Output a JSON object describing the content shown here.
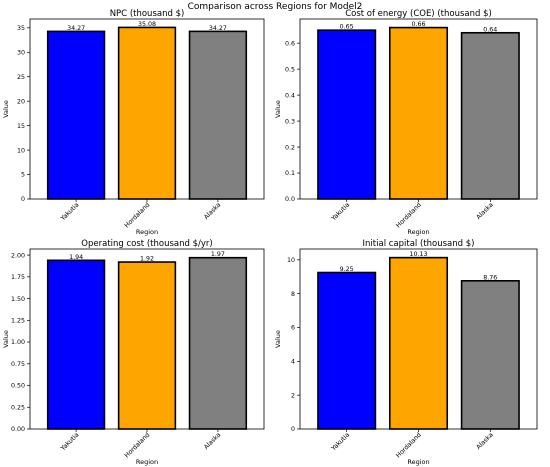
{
  "figure": {
    "title": "Comparison across Regions for Model2"
  },
  "chart_data": [
    {
      "type": "bar",
      "title": "NPC (thousand $)",
      "xlabel": "Region",
      "ylabel": "Value",
      "categories": [
        "Yakutia",
        "Hordaland",
        "Alaska"
      ],
      "values": [
        34.27,
        35.08,
        34.27
      ],
      "data_labels": [
        "34.27",
        "35.08",
        "34.27"
      ],
      "colors": [
        "#0000ff",
        "#ffa500",
        "#808080"
      ],
      "ylim": [
        0,
        36.8
      ],
      "yticks": [
        0,
        5,
        10,
        15,
        20,
        25,
        30,
        35
      ],
      "ytick_labels": [
        "0",
        "5",
        "10",
        "15",
        "20",
        "25",
        "30",
        "35"
      ],
      "grid": false
    },
    {
      "type": "bar",
      "title": "Cost of energy (COE) (thousand $)",
      "xlabel": "Region",
      "ylabel": "Value",
      "categories": [
        "Yakutia",
        "Hordaland",
        "Alaska"
      ],
      "values": [
        0.65,
        0.66,
        0.64
      ],
      "data_labels": [
        "0.65",
        "0.66",
        "0.64"
      ],
      "colors": [
        "#0000ff",
        "#ffa500",
        "#808080"
      ],
      "ylim": [
        0,
        0.693
      ],
      "yticks": [
        0,
        0.1,
        0.2,
        0.3,
        0.4,
        0.5,
        0.6
      ],
      "ytick_labels": [
        "0.0",
        "0.1",
        "0.2",
        "0.3",
        "0.4",
        "0.5",
        "0.6"
      ],
      "grid": false
    },
    {
      "type": "bar",
      "title": "Operating cost (thousand $/yr)",
      "xlabel": "Region",
      "ylabel": "Value",
      "categories": [
        "Yakutia",
        "Hordaland",
        "Alaska"
      ],
      "values": [
        1.94,
        1.92,
        1.97
      ],
      "data_labels": [
        "1.94",
        "1.92",
        "1.97"
      ],
      "colors": [
        "#0000ff",
        "#ffa500",
        "#808080"
      ],
      "ylim": [
        0,
        2.07
      ],
      "yticks": [
        0,
        0.25,
        0.5,
        0.75,
        1.0,
        1.25,
        1.5,
        1.75,
        2.0
      ],
      "ytick_labels": [
        "0.00",
        "0.25",
        "0.50",
        "0.75",
        "1.00",
        "1.25",
        "1.50",
        "1.75",
        "2.00"
      ],
      "grid": false
    },
    {
      "type": "bar",
      "title": "Initial capital (thousand $)",
      "xlabel": "Region",
      "ylabel": "Value",
      "categories": [
        "Yakutia",
        "Hordaland",
        "Alaska"
      ],
      "values": [
        9.25,
        10.13,
        8.76
      ],
      "data_labels": [
        "9.25",
        "10.13",
        "8.76"
      ],
      "colors": [
        "#0000ff",
        "#ffa500",
        "#808080"
      ],
      "ylim": [
        0,
        10.64
      ],
      "yticks": [
        0,
        2,
        4,
        6,
        8,
        10
      ],
      "ytick_labels": [
        "0",
        "2",
        "4",
        "6",
        "8",
        "10"
      ],
      "grid": false
    }
  ]
}
